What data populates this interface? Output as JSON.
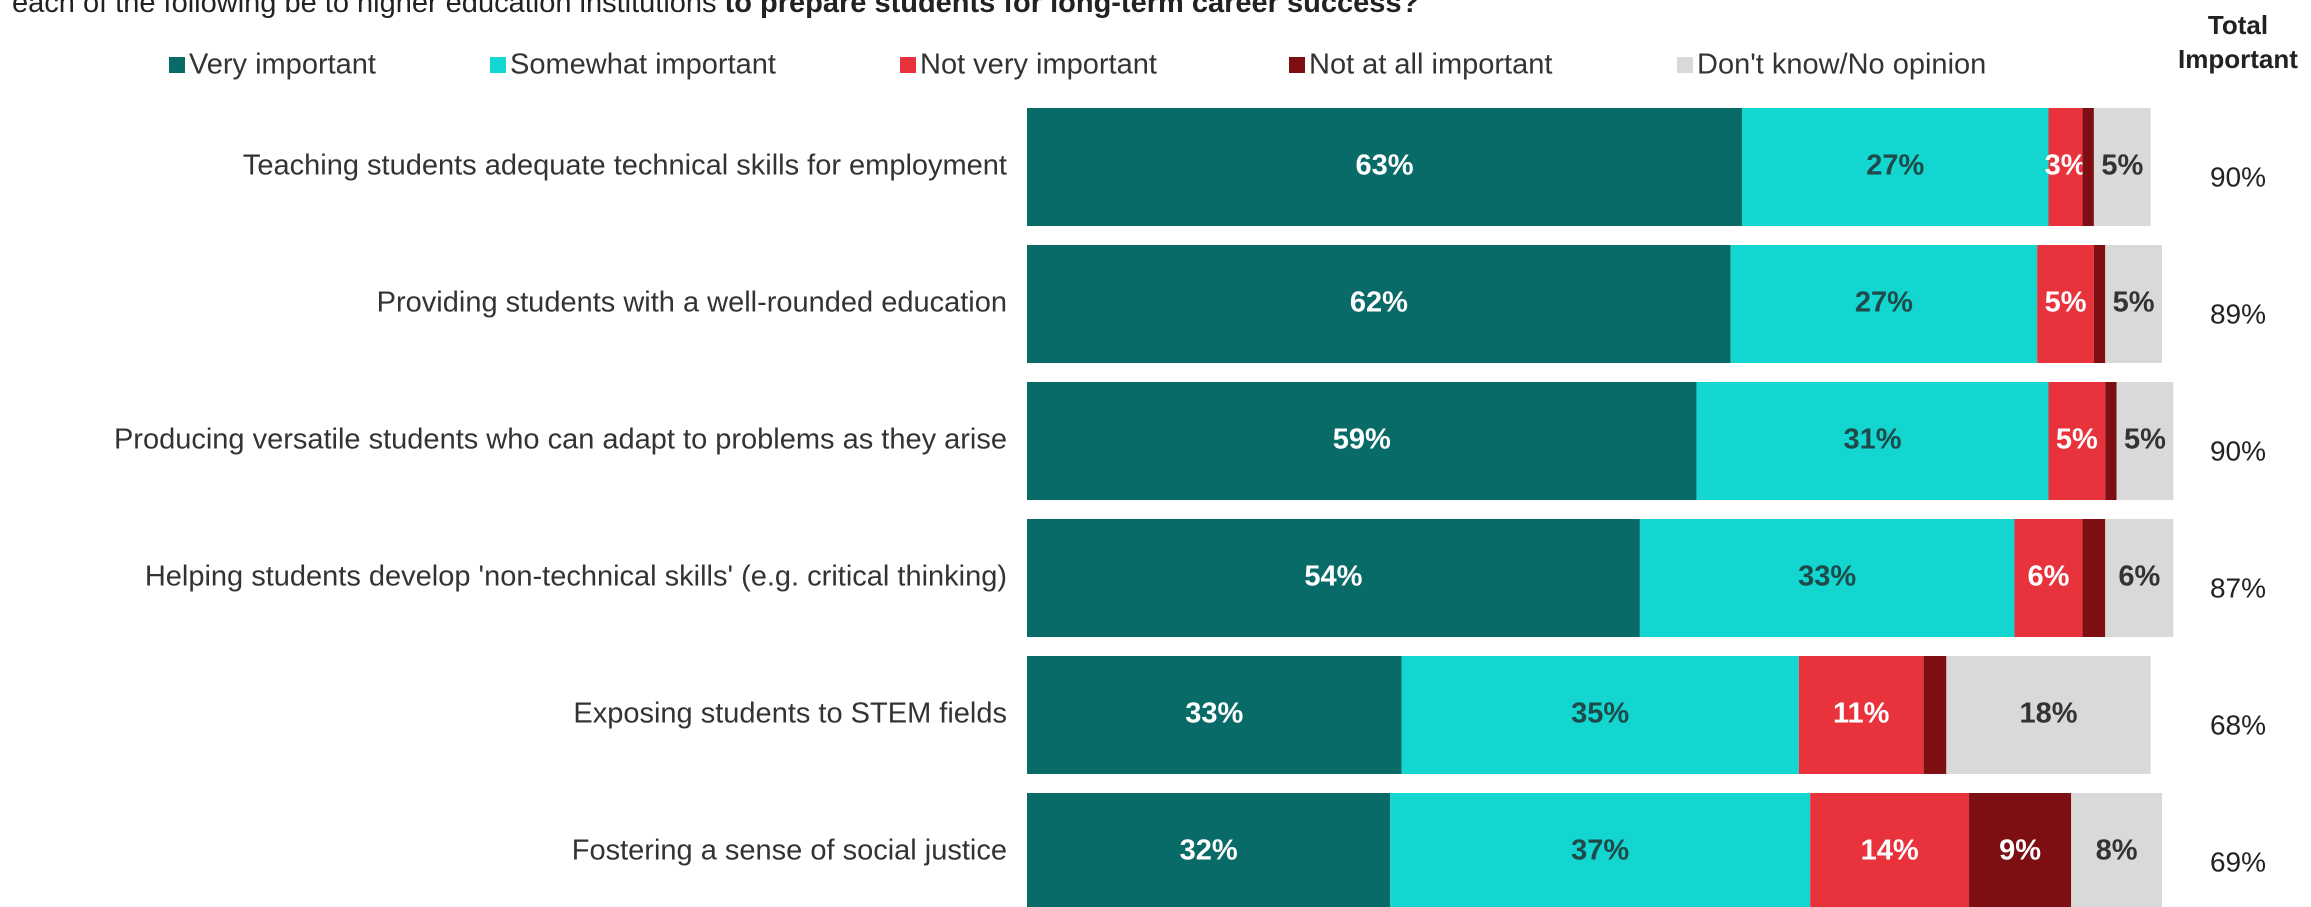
{
  "chart_data": {
    "type": "stacked-bar-horizontal",
    "title": "each of the following be to higher education institutions ",
    "title_emphasis": "to prepare students for long-term career success?",
    "categories": [
      "Teaching students adequate technical skills for employment",
      "Providing students with a well-rounded education",
      "Producing versatile students who can adapt to problems as they arise",
      "Helping students develop 'non-technical skills' (e.g. critical thinking)",
      "Exposing students to STEM fields",
      "Fostering a sense of social justice"
    ],
    "xlim": [
      0,
      100
    ],
    "series": [
      {
        "name": "Very important",
        "color": "#086b68",
        "label_color": "#ffffff",
        "values": [
          63,
          62,
          59,
          54,
          33,
          32
        ],
        "value_labels": [
          "63%",
          "62%",
          "59%",
          "54%",
          "33%",
          "32%"
        ]
      },
      {
        "name": "Somewhat important",
        "color": "#12d6cf",
        "label_color": "#1f4a4a",
        "values": [
          27,
          27,
          31,
          33,
          35,
          37
        ],
        "value_labels": [
          "27%",
          "27%",
          "31%",
          "33%",
          "35%",
          "37%"
        ]
      },
      {
        "name": "Not very important",
        "color": "#e8323c",
        "label_color": "#ffffff",
        "values": [
          3,
          5,
          5,
          6,
          11,
          14
        ],
        "value_labels": [
          "3%",
          "5%",
          "5%",
          "6%",
          "11%",
          "14%"
        ]
      },
      {
        "name": "Not at all important",
        "color": "#7d0f13",
        "label_color": "#ffffff",
        "values": [
          1,
          1,
          1,
          2,
          2,
          9
        ],
        "value_labels": [
          null,
          null,
          null,
          null,
          null,
          "9%"
        ]
      },
      {
        "name": "Don't know/No opinion",
        "color": "#d9d9d9",
        "label_color": "#333333",
        "values": [
          5,
          5,
          5,
          6,
          18,
          8
        ],
        "value_labels": [
          "5%",
          "5%",
          "5%",
          "6%",
          "18%",
          "8%"
        ]
      }
    ],
    "totals": {
      "name": "Total Important",
      "values": [
        90,
        89,
        90,
        87,
        68,
        69
      ],
      "value_labels": [
        "90%",
        "89%",
        "90%",
        "87%",
        "68%",
        "69%"
      ]
    }
  }
}
